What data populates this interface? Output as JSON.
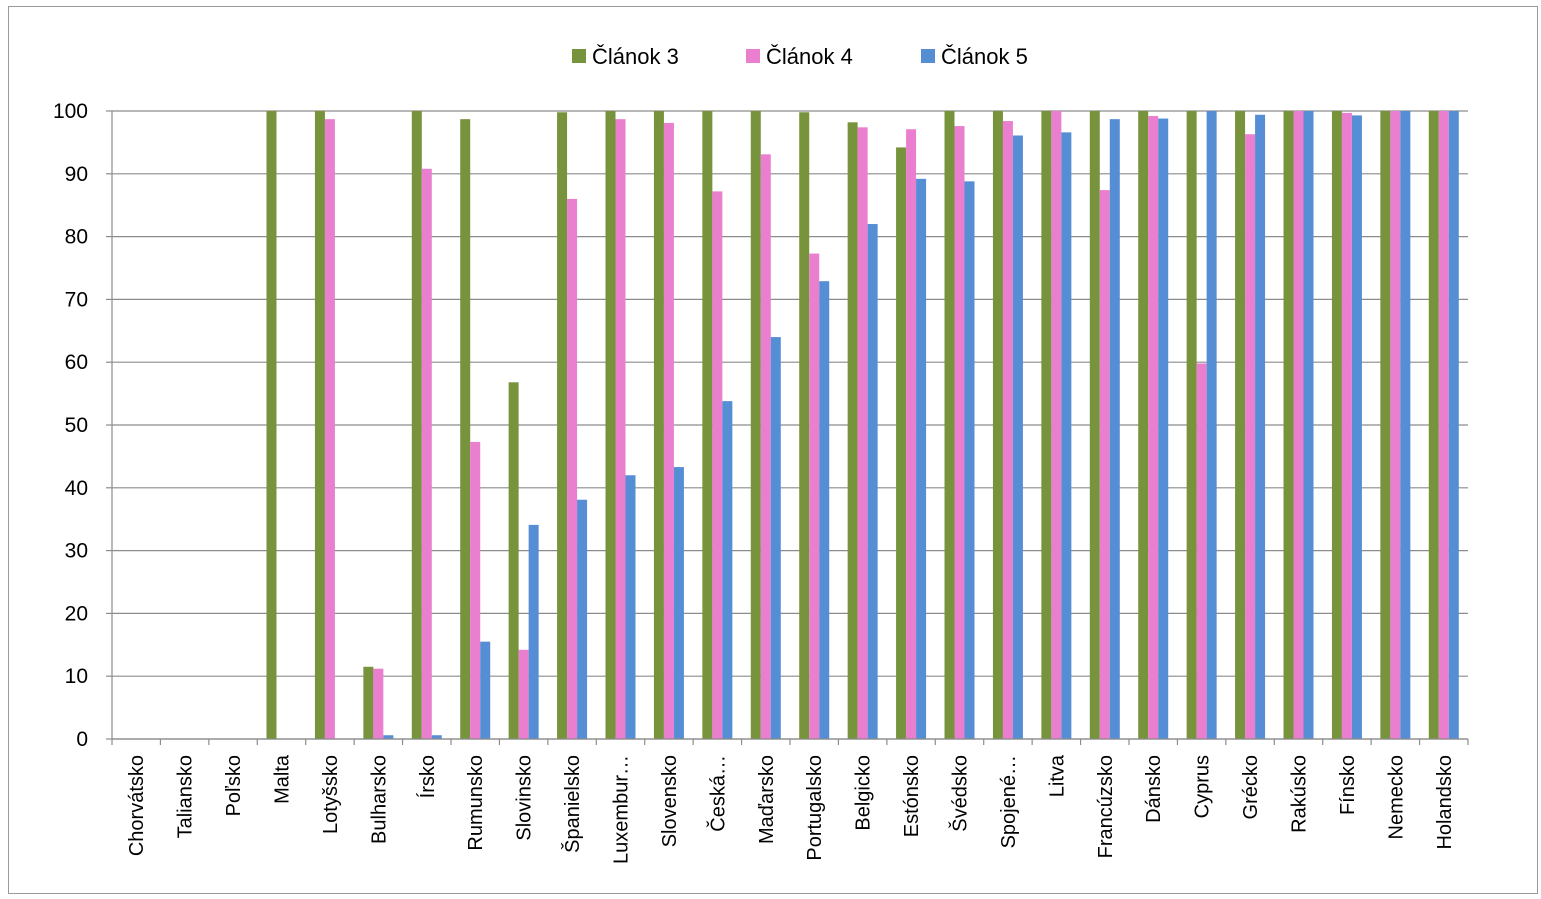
{
  "chart_data": {
    "type": "bar",
    "title": "",
    "xlabel": "",
    "ylabel": "",
    "ylim": [
      0,
      100
    ],
    "yticks": [
      0,
      10,
      20,
      30,
      40,
      50,
      60,
      70,
      80,
      90,
      100
    ],
    "grid": true,
    "legend_position": "top",
    "categories": [
      "Chorvátsko",
      "Taliansko",
      "Poľsko",
      "Malta",
      "Lotyšsko",
      "Bulharsko",
      "Írsko",
      "Rumunsko",
      "Slovinsko",
      "Španielsko",
      "Luxembur…",
      "Slovensko",
      "Česká…",
      "Maďarsko",
      "Portugalsko",
      "Belgicko",
      "Estónsko",
      "Švédsko",
      "Spojené…",
      "Litva",
      "Francúzsko",
      "Dánsko",
      "Cyprus",
      "Grécko",
      "Rakúsko",
      "Fínsko",
      "Nemecko",
      "Holandsko"
    ],
    "series": [
      {
        "name": "Článok 3",
        "color": "#77933c",
        "values": [
          0,
          0,
          0,
          100,
          100,
          11.5,
          100,
          98.7,
          56.8,
          99.8,
          100,
          100,
          100,
          100,
          99.8,
          98.2,
          94.2,
          100,
          100,
          100,
          100,
          100,
          100,
          100,
          100,
          100,
          100,
          100
        ]
      },
      {
        "name": "Článok 4",
        "color": "#ea7fcf",
        "values": [
          0,
          0,
          0,
          0,
          98.7,
          11.2,
          90.8,
          47.3,
          14.2,
          86,
          98.7,
          98.1,
          87.2,
          93.1,
          77.3,
          97.4,
          97.1,
          97.6,
          98.4,
          100,
          87.4,
          99.2,
          59.8,
          96.3,
          100,
          99.7,
          100,
          100
        ]
      },
      {
        "name": "Článok 5",
        "color": "#558ed5",
        "values": [
          0,
          0,
          0,
          0,
          0,
          0.6,
          0.6,
          15.5,
          34.1,
          38.1,
          42,
          43.3,
          53.8,
          64,
          72.9,
          82,
          89.2,
          88.8,
          96.1,
          96.6,
          98.7,
          98.8,
          100,
          99.4,
          100,
          99.3,
          100,
          100
        ]
      }
    ]
  }
}
